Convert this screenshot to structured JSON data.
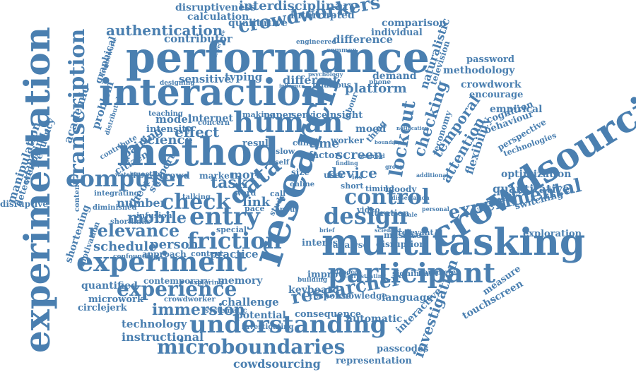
{
  "word_cloud": {
    "color": "#4a7fb0",
    "words": [
      "performance",
      "interaction",
      "method",
      "research",
      "multitasking",
      "crowdsourcing",
      "experimentation",
      "experiment",
      "participant",
      "understanding",
      "microboundaries",
      "transcription",
      "manipulation",
      "human",
      "computer",
      "entry",
      "data",
      "lockout",
      "design",
      "control",
      "friction",
      "experience",
      "relevance",
      "mobile",
      "check",
      "experimental",
      "checking",
      "researcher",
      "immersion",
      "crowdworkers",
      "authentication",
      "interdisciplinary",
      "disruptiveness",
      "calculation",
      "interrupted",
      "qualitative",
      "comparison",
      "individual",
      "difference",
      "contributor",
      "naturalistic",
      "password",
      "methodology",
      "crowdwork",
      "encourage",
      "empirical",
      "cognition",
      "behaviour",
      "temporal",
      "flexibility",
      "attention",
      "quantitative",
      "optimization",
      "volunteer",
      "switching",
      "exploration",
      "investigation",
      "interactive",
      "touchscreen",
      "measure",
      "automatic",
      "language",
      "passcodes",
      "representation",
      "cowdsourcing",
      "instructional",
      "technology",
      "microwork",
      "circlejerk",
      "quantified",
      "motivation",
      "shortening",
      "disruptive",
      "detection",
      "wellbeing",
      "frequency",
      "academic",
      "problem",
      "graphical",
      "citizen",
      "pairing",
      "science",
      "effect",
      "model",
      "intensity",
      "internet",
      "typing",
      "sensitive",
      "different",
      "platform",
      "demand",
      "mood",
      "screen",
      "device",
      "time",
      "factor",
      "worker",
      "schedule",
      "person",
      "number",
      "theory",
      "support",
      "task",
      "more",
      "link",
      "practice",
      "memory",
      "contemporary",
      "challenge",
      "potential",
      "consequence",
      "keyboard",
      "response",
      "knowledge",
      "disruption",
      "interest",
      "analyse",
      "improve",
      "significant",
      "parameter",
      "massive",
      "relevant",
      "duration",
      "video",
      "timing",
      "short",
      "bloody",
      "size",
      "user",
      "crowd",
      "market",
      "question",
      "watching",
      "integrating",
      "contribute",
      "distributed",
      "teaching",
      "paper",
      "service",
      "insight",
      "making",
      "result",
      "concern",
      "hilarious",
      "engineered",
      "television",
      "economy",
      "labour",
      "call",
      "study",
      "input",
      "pace",
      "approach",
      "context",
      "special",
      "confounding",
      "exploring",
      "crowdworker",
      "systematic",
      "investigating",
      "building",
      "frustrating",
      "dissertation",
      "additional",
      "personal",
      "scientist",
      "common",
      "thing",
      "technologies",
      "perspective",
      "diminished",
      "shortlinks",
      "content",
      "infusion",
      "talking",
      "word",
      "framework",
      "designing",
      "interference",
      "psychology",
      "influence",
      "notification",
      "boundary",
      "slow",
      "cuing",
      "self",
      "online",
      "group",
      "phone",
      "ios",
      "android",
      "attendee",
      "brief",
      "scale",
      "finding"
    ]
  }
}
